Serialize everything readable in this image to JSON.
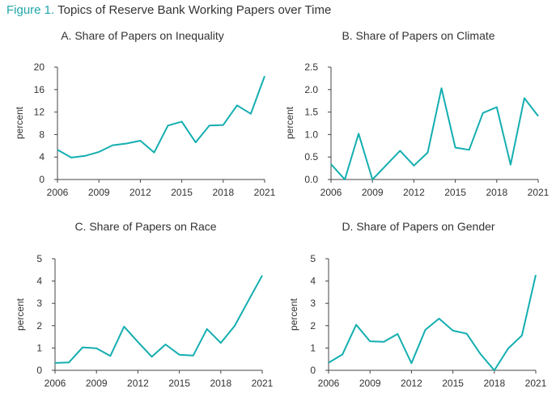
{
  "figure": {
    "label": "Figure 1.",
    "title": "Topics of Reserve Bank Working Papers over Time",
    "label_color": "#22a6a8",
    "line_color": "#14aeb0"
  },
  "chart_data": [
    {
      "type": "line",
      "title": "A. Share of Papers on Inequality",
      "ylabel": "percent",
      "ylim": [
        0,
        20
      ],
      "yticks": [
        0,
        4,
        8,
        12,
        16,
        20
      ],
      "xlim": [
        2006,
        2021
      ],
      "xticks": [
        2006,
        2009,
        2012,
        2015,
        2018,
        2021
      ],
      "x": [
        2006,
        2007,
        2008,
        2009,
        2010,
        2011,
        2012,
        2013,
        2014,
        2015,
        2016,
        2017,
        2018,
        2019,
        2020,
        2021
      ],
      "y": [
        5.3,
        3.9,
        4.2,
        4.9,
        6.1,
        6.4,
        6.9,
        4.8,
        9.6,
        10.3,
        6.6,
        9.6,
        9.7,
        13.2,
        11.7,
        18.4
      ]
    },
    {
      "type": "line",
      "title": "B. Share of Papers on Climate",
      "ylabel": "percent",
      "ylim": [
        0,
        2.5
      ],
      "yticks": [
        "0.0",
        "0.5",
        "1.0",
        "1.5",
        "2.0",
        "2.5"
      ],
      "xlim": [
        2006,
        2021
      ],
      "xticks": [
        2006,
        2009,
        2012,
        2015,
        2018,
        2021
      ],
      "x": [
        2006,
        2007,
        2008,
        2009,
        2010,
        2011,
        2012,
        2013,
        2014,
        2015,
        2016,
        2017,
        2018,
        2019,
        2020,
        2021
      ],
      "y": [
        0.34,
        0.0,
        1.02,
        0.0,
        0.32,
        0.64,
        0.31,
        0.6,
        2.03,
        0.71,
        0.66,
        1.48,
        1.61,
        0.33,
        1.81,
        1.41
      ]
    },
    {
      "type": "line",
      "title": "C. Share of Papers on Race",
      "ylabel": "percent",
      "ylim": [
        0,
        5
      ],
      "yticks": [
        0,
        1,
        2,
        3,
        4,
        5
      ],
      "xlim": [
        2006,
        2021
      ],
      "xticks": [
        2006,
        2009,
        2012,
        2015,
        2018,
        2021
      ],
      "x": [
        2006,
        2007,
        2008,
        2009,
        2010,
        2011,
        2012,
        2013,
        2014,
        2015,
        2016,
        2017,
        2018,
        2019,
        2020,
        2021
      ],
      "y": [
        0.33,
        0.35,
        1.03,
        0.99,
        0.64,
        1.96,
        1.27,
        0.61,
        1.16,
        0.7,
        0.66,
        1.85,
        1.23,
        1.99,
        3.12,
        4.25
      ]
    },
    {
      "type": "line",
      "title": "D. Share of Papers on Gender",
      "ylabel": "percent",
      "ylim": [
        0,
        5
      ],
      "yticks": [
        0,
        1,
        2,
        3,
        4,
        5
      ],
      "xlim": [
        2006,
        2021
      ],
      "xticks": [
        2006,
        2009,
        2012,
        2015,
        2018,
        2021
      ],
      "x": [
        2006,
        2007,
        2008,
        2009,
        2010,
        2011,
        2012,
        2013,
        2014,
        2015,
        2016,
        2017,
        2018,
        2019,
        2020,
        2021
      ],
      "y": [
        0.34,
        0.71,
        2.04,
        1.3,
        1.28,
        1.63,
        0.32,
        1.81,
        2.32,
        1.78,
        1.64,
        0.73,
        0.0,
        0.98,
        1.56,
        4.27
      ]
    }
  ]
}
